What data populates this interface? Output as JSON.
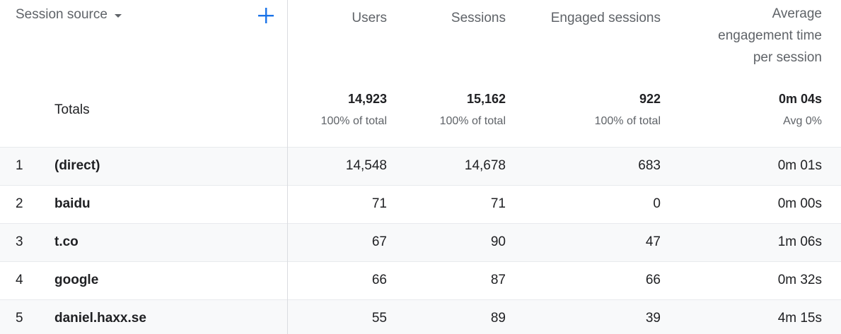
{
  "header": {
    "source_label": "Session source",
    "users_label": "Users",
    "sessions_label": "Sessions",
    "engaged_label": "Engaged sessions",
    "avg_label_line1": "Average",
    "avg_label_line2": "engagement time",
    "avg_label_line3": "per session"
  },
  "totals": {
    "label": "Totals",
    "users": "14,923",
    "users_pct": "100% of total",
    "sessions": "15,162",
    "sessions_pct": "100% of total",
    "engaged": "922",
    "engaged_pct": "100% of total",
    "avg": "0m 04s",
    "avg_pct": "Avg 0%"
  },
  "rows": [
    {
      "idx": "1",
      "source": "(direct)",
      "users": "14,548",
      "sessions": "14,678",
      "engaged": "683",
      "avg": "0m 01s"
    },
    {
      "idx": "2",
      "source": "baidu",
      "users": "71",
      "sessions": "71",
      "engaged": "0",
      "avg": "0m 00s"
    },
    {
      "idx": "3",
      "source": "t.co",
      "users": "67",
      "sessions": "90",
      "engaged": "47",
      "avg": "1m 06s"
    },
    {
      "idx": "4",
      "source": "google",
      "users": "66",
      "sessions": "87",
      "engaged": "66",
      "avg": "0m 32s"
    },
    {
      "idx": "5",
      "source": "daniel.haxx.se",
      "users": "55",
      "sessions": "89",
      "engaged": "39",
      "avg": "4m 15s"
    }
  ],
  "icons": {
    "add": "plus-icon",
    "dropdown": "caret-down-icon"
  },
  "colors": {
    "accent": "#1a73e8",
    "row_alt": "#f8f9fa",
    "divider": "#dadce0"
  }
}
